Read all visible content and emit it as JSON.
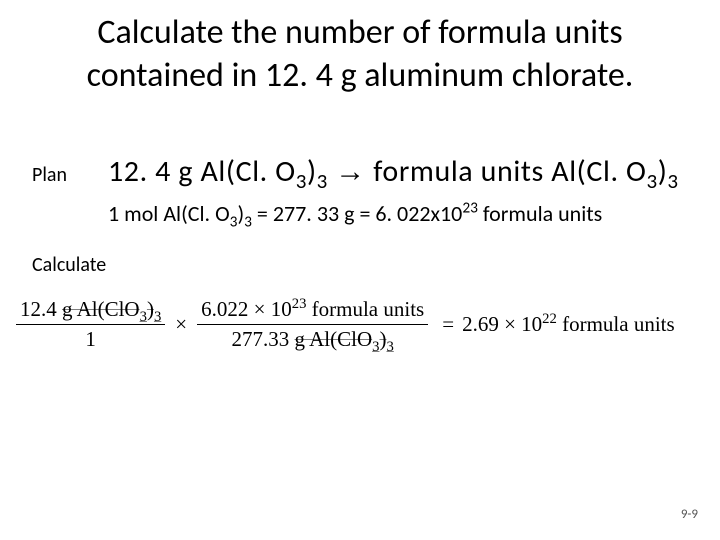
{
  "title": "Calculate the number of formula units contained in  12. 4 g  aluminum chlorate.",
  "plan": {
    "label": "Plan",
    "lhs_prefix": "12. 4 g Al(Cl. O",
    "sub3a": "3",
    "rparen_close": ")",
    "sub3b": "3",
    "arrow": "→",
    "rhs_prefix": " formula units Al(Cl. O",
    "sub3c": "3",
    "rparen_close2": ")",
    "sub3d": "3"
  },
  "plan_detail": {
    "prefix": "1 mol Al(Cl. O",
    "sub3a": "3",
    "rparen": ")",
    "sub3b": "3",
    "mid": " = 277. 33 g = 6. 022x10",
    "sup23": "23",
    "suffix": " formula units"
  },
  "calc_label": "Calculate",
  "equation": {
    "term1": {
      "num_prefix": "12.4 ",
      "num_strike": "g Al(ClO",
      "num_sub3a": "3",
      "num_close": ")",
      "num_sub3b": "3",
      "den": "1"
    },
    "times1": "×",
    "term2": {
      "num_prefix": "6.022 × 10",
      "num_sup": "23",
      "num_suffix": " formula units",
      "den_prefix": "277.33 ",
      "den_strike": "g Al(ClO",
      "den_sub3a": "3",
      "den_close": ")",
      "den_sub3b": "3"
    },
    "eq": "=",
    "result_prefix": "2.69 × 10",
    "result_sup": "22",
    "result_suffix": " formula units"
  },
  "page_num": "9-9"
}
